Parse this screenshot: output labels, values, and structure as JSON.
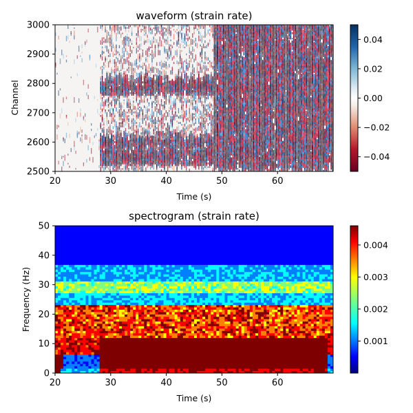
{
  "chart_data": [
    {
      "type": "heatmap",
      "title": "waveform (strain rate)",
      "xlabel": "Time (s)",
      "ylabel": "Channel",
      "xlim": [
        20,
        70
      ],
      "ylim": [
        2500,
        3000
      ],
      "x_ticks": [
        20,
        30,
        40,
        50,
        60
      ],
      "y_ticks": [
        2500,
        2600,
        2700,
        2800,
        2900,
        3000
      ],
      "colormap": "seismic_r (red-white-blue)",
      "colorbar": {
        "range": [
          -0.05,
          0.05
        ],
        "ticks": [
          0.04,
          0.02,
          0.0,
          -0.02,
          -0.04
        ],
        "tick_labels": [
          "0.04",
          "0.02",
          "0.00",
          "−0.02",
          "−0.04"
        ]
      },
      "event_onsets_s": [
        28,
        48.5
      ],
      "strong_bands_channel": [
        2530,
        2555,
        2590,
        2770,
        2790
      ]
    },
    {
      "type": "heatmap",
      "title": "spectrogram (strain rate)",
      "xlabel": "Time (s)",
      "ylabel": "Frequency (Hz)",
      "xlim": [
        20,
        70
      ],
      "ylim": [
        0,
        50
      ],
      "x_ticks": [
        20,
        30,
        40,
        50,
        60
      ],
      "y_ticks": [
        0,
        10,
        20,
        30,
        40,
        50
      ],
      "colormap": "jet",
      "colorbar": {
        "range": [
          0,
          0.0046
        ],
        "ticks": [
          0.004,
          0.003,
          0.002,
          0.001
        ],
        "tick_labels": [
          "0.004",
          "0.003",
          "0.002",
          "0.001"
        ]
      },
      "event_onsets_s": [
        28,
        48.5
      ]
    }
  ]
}
